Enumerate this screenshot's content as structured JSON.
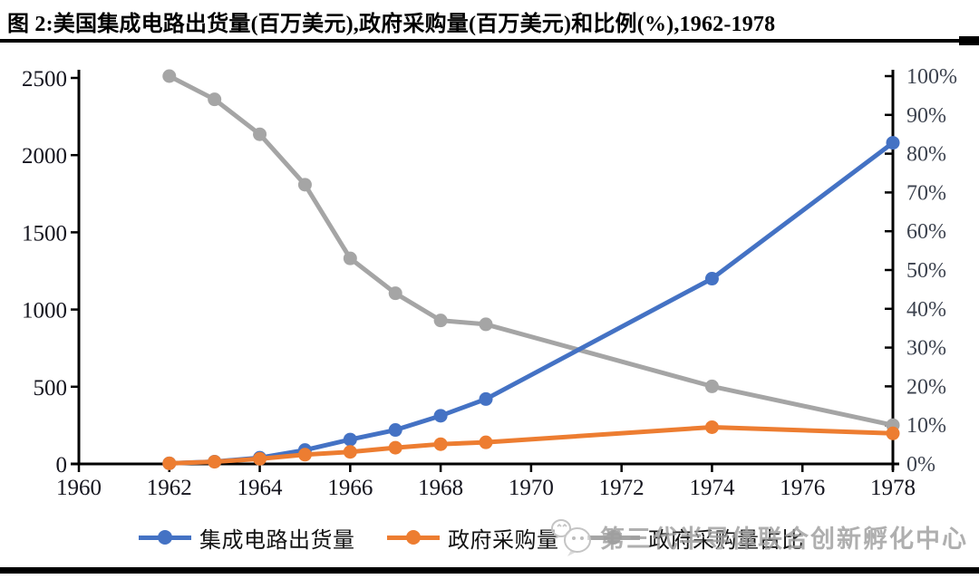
{
  "page": {
    "title": "图 2:美国集成电路出货量(百万美元),政府采购量(百万美元)和比例(%),1962-1978"
  },
  "colors": {
    "shipments_blue": "#4472C4",
    "procurement_orange": "#ED7D31",
    "ratio_gray": "#A5A5A5",
    "axis_black": "#000000",
    "watermark_gray": "#9E9E9E"
  },
  "chart_data": {
    "type": "line",
    "title": "美国集成电路出货量(百万美元),政府采购量(百万美元)和比例(%),1962-1978",
    "x": [
      1962,
      1963,
      1964,
      1965,
      1966,
      1967,
      1968,
      1969,
      1974,
      1978
    ],
    "series": [
      {
        "name": "集成电路出货量",
        "yaxis": "left",
        "color": "#4472C4",
        "values": [
          4,
          15,
          40,
          90,
          158,
          220,
          312,
          420,
          1200,
          2080
        ]
      },
      {
        "name": "政府采购量",
        "yaxis": "left",
        "color": "#ED7D31",
        "values": [
          4,
          14,
          33,
          60,
          78,
          105,
          128,
          140,
          238,
          198
        ]
      },
      {
        "name": "政府采购量占比",
        "yaxis": "right",
        "color": "#A5A5A5",
        "values": [
          100,
          94,
          85,
          72,
          53,
          44,
          37,
          36,
          20,
          10
        ]
      }
    ],
    "x_axis": {
      "ticks": [
        1960,
        1962,
        1964,
        1966,
        1968,
        1970,
        1972,
        1974,
        1976,
        1978
      ],
      "range": [
        1960,
        1978
      ]
    },
    "left_axis": {
      "ticks": [
        0,
        500,
        1000,
        1500,
        2000,
        2500
      ],
      "range": [
        0,
        2500
      ]
    },
    "right_axis": {
      "ticks": [
        "0%",
        "10%",
        "20%",
        "30%",
        "40%",
        "50%",
        "60%",
        "70%",
        "80%",
        "90%",
        "100%"
      ],
      "range": [
        0,
        100
      ]
    },
    "grid": false,
    "legend_position": "bottom"
  },
  "legend": {
    "items": [
      {
        "label": "集成电路出货量",
        "color": "#4472C4"
      },
      {
        "label": "政府采购量",
        "color": "#ED7D31"
      },
      {
        "label": "政府采购量占比",
        "color": "#A5A5A5"
      }
    ]
  },
  "watermark": {
    "logo_icon": "chat-bubbles-logo",
    "text": "第三代半导体联合创新孵化中心"
  }
}
